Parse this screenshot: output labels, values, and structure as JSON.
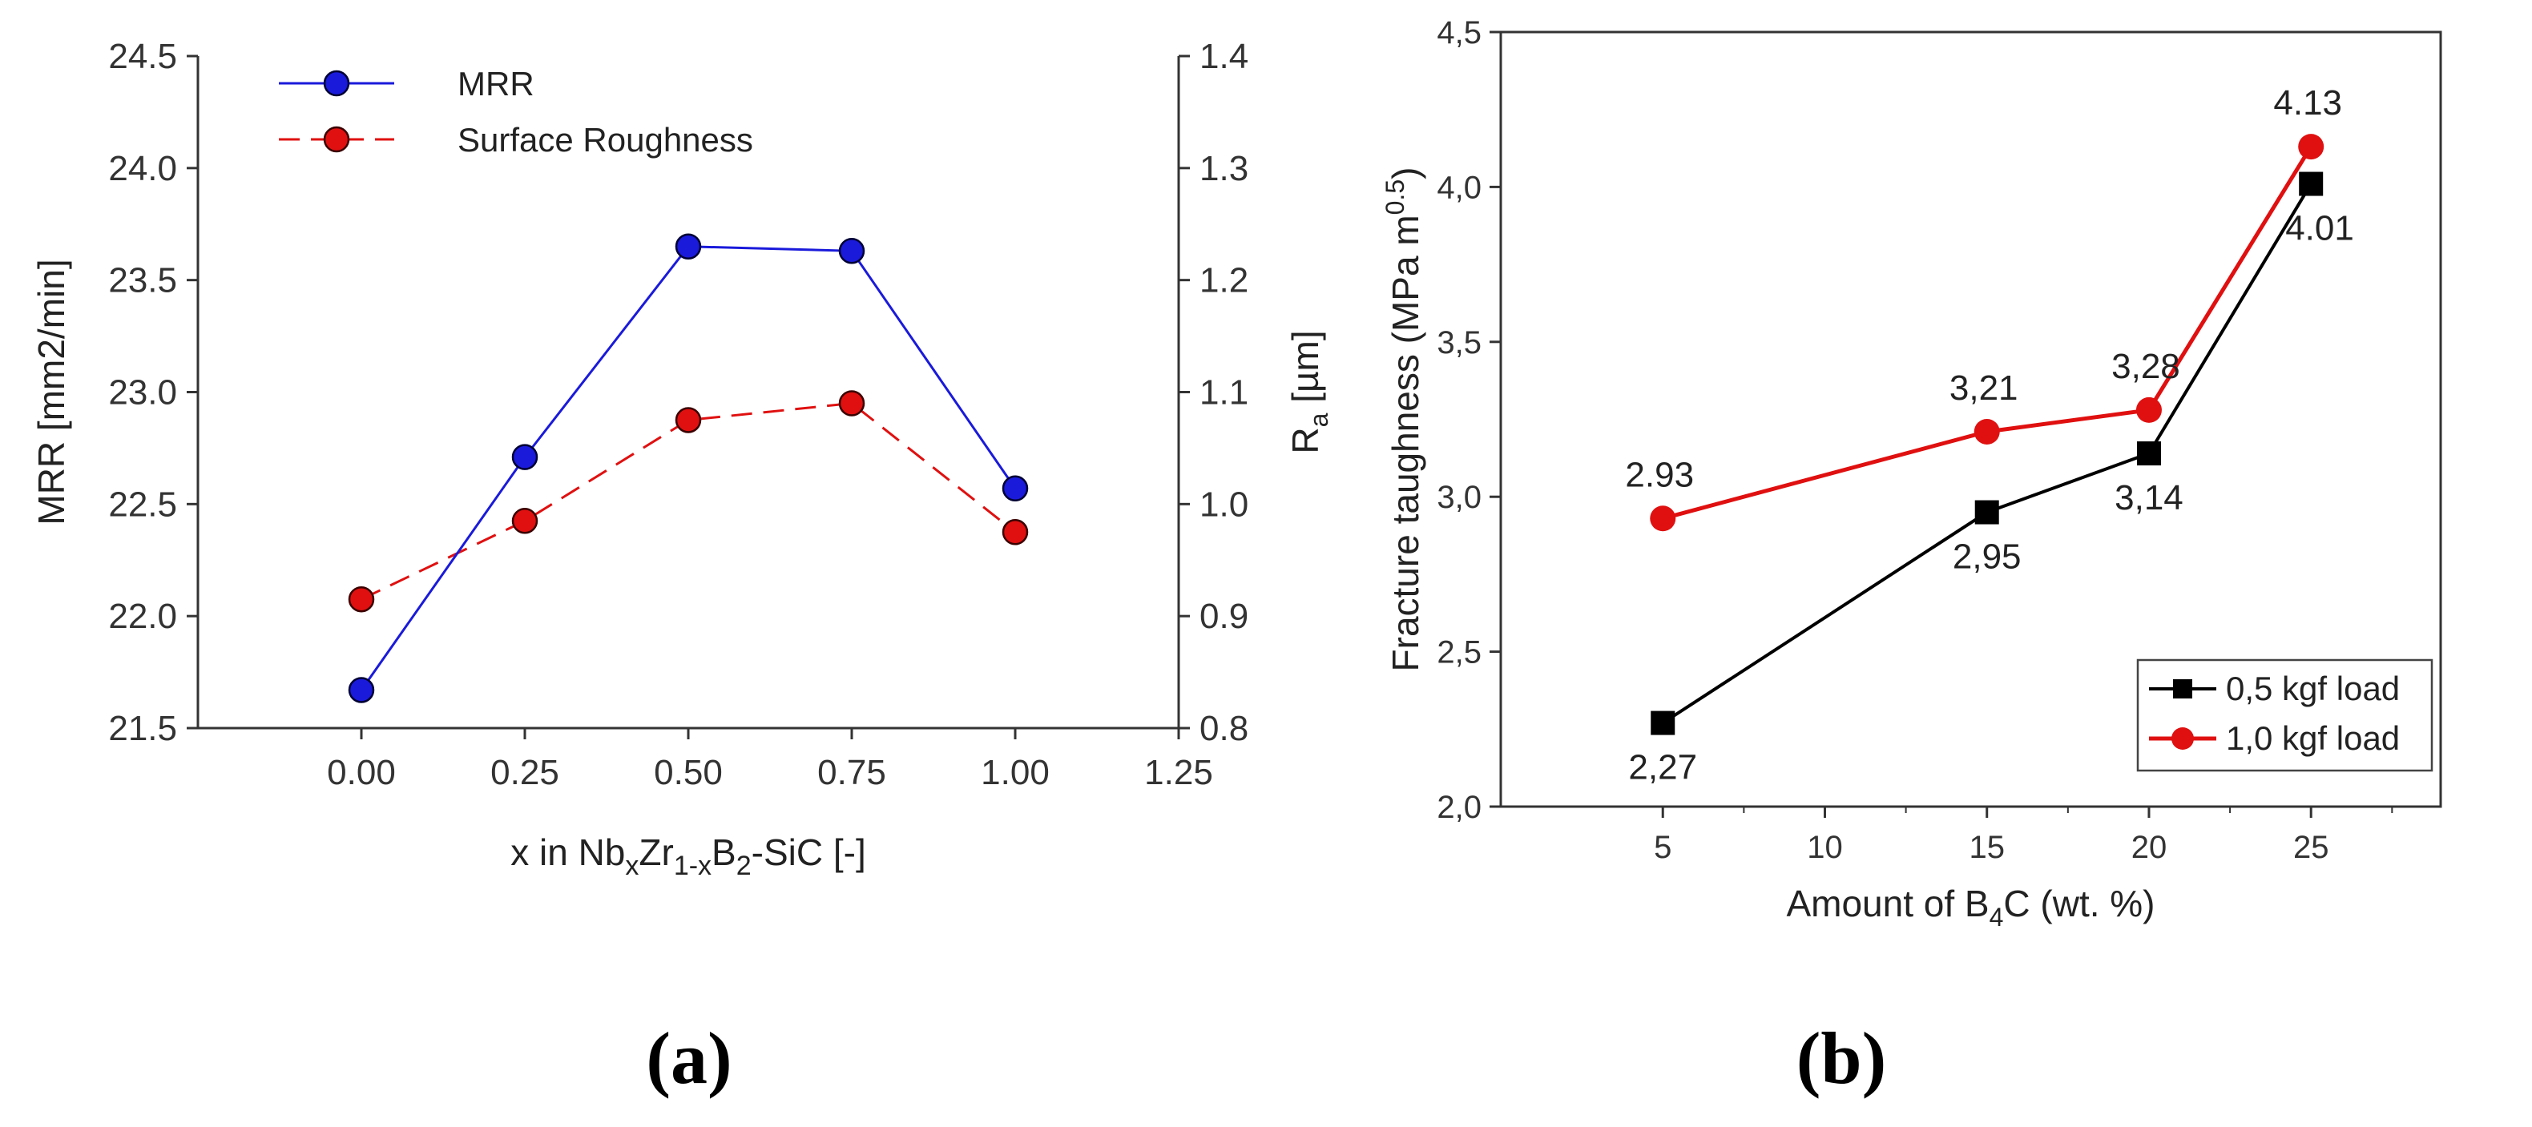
{
  "colors": {
    "mrr": "#1a1adb",
    "roughness": "#e01010",
    "load05": "#000000",
    "load10": "#e01010",
    "axis": "#333333"
  },
  "chart_data": [
    {
      "type": "line",
      "panel_label": "(a)",
      "xlabel_parts": [
        "x in Nb",
        "x",
        "Zr",
        "1-x",
        "B",
        "2",
        "-SiC [-]"
      ],
      "ylabel": "MRR [mm2/min]",
      "y2label_parts": [
        "R",
        "a",
        " [",
        "µ",
        "m]"
      ],
      "xlim": [
        -0.25,
        1.25
      ],
      "xticks": [
        0.0,
        0.25,
        0.5,
        0.75,
        1.0,
        1.25
      ],
      "xtick_labels": [
        "0.00",
        "0.25",
        "0.50",
        "0.75",
        "1.00",
        "1.25"
      ],
      "ylim": [
        21.5,
        24.5
      ],
      "yticks": [
        21.5,
        22.0,
        22.5,
        23.0,
        23.5,
        24.0,
        24.5
      ],
      "ytick_labels": [
        "21.5",
        "22.0",
        "22.5",
        "23.0",
        "23.5",
        "24.0",
        "24.5"
      ],
      "y2lim": [
        0.8,
        1.4
      ],
      "y2ticks": [
        0.8,
        0.9,
        1.0,
        1.1,
        1.2,
        1.3,
        1.4
      ],
      "y2tick_labels": [
        "0.8",
        "0.9",
        "1.0",
        "1.1",
        "1.2",
        "1.3",
        "1.4"
      ],
      "legend_position": "top-left",
      "x": [
        0.0,
        0.25,
        0.5,
        0.75,
        1.0
      ],
      "series": [
        {
          "name": "MRR",
          "axis": "left",
          "values": [
            21.67,
            22.71,
            23.65,
            23.63,
            22.57
          ]
        },
        {
          "name": "Surface Roughness",
          "axis": "right",
          "values": [
            0.915,
            0.985,
            1.075,
            1.09,
            0.975
          ]
        }
      ]
    },
    {
      "type": "line",
      "panel_label": "(b)",
      "xlabel_parts": [
        "Amount of B",
        "4",
        "C (wt. %)"
      ],
      "ylabel_parts": [
        "Fracture taughness (MPa m",
        "0.5",
        ")"
      ],
      "xlim": [
        0,
        29
      ],
      "xticks": [
        5,
        10,
        15,
        20,
        25
      ],
      "xtick_labels": [
        "5",
        "10",
        "15",
        "20",
        "25"
      ],
      "ylim": [
        2.0,
        4.5
      ],
      "yticks": [
        2.0,
        2.5,
        3.0,
        3.5,
        4.0,
        4.5
      ],
      "ytick_labels": [
        "2,0",
        "2,5",
        "3,0",
        "3,5",
        "4,0",
        "4,5"
      ],
      "legend_position": "bottom-right",
      "x": [
        5,
        15,
        20,
        25
      ],
      "series": [
        {
          "name": "0,5 kgf load",
          "values": [
            2.27,
            2.95,
            3.14,
            4.01
          ],
          "labels": [
            "2,27",
            "2,95",
            "3,14",
            "4.01"
          ]
        },
        {
          "name": "1,0 kgf load",
          "values": [
            2.93,
            3.21,
            3.28,
            4.13
          ],
          "labels": [
            "2.93",
            "3,21",
            "3,28",
            "4.13"
          ]
        }
      ]
    }
  ]
}
